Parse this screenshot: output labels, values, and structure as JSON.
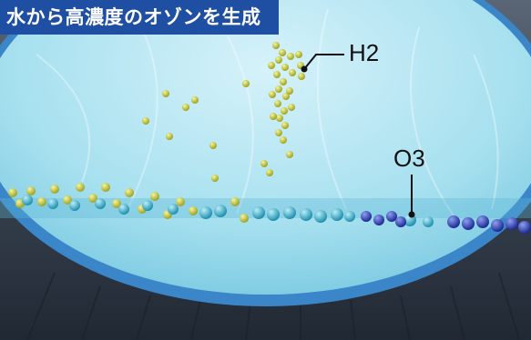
{
  "title": "水から高濃度のオゾンを生成",
  "labels": {
    "h2": "H2",
    "o3": "O3"
  },
  "colors": {
    "title_background": "#1f4fa3",
    "water": "#8fd6ea",
    "rim": "#3a86c8",
    "h2_bubbles": "#c2c43b",
    "o3_bubbles": "#39a9c9",
    "o3_dense": "#2f44b8",
    "label_text": "#111111"
  },
  "icons": [
    "leader-line-h2",
    "leader-line-o3"
  ]
}
